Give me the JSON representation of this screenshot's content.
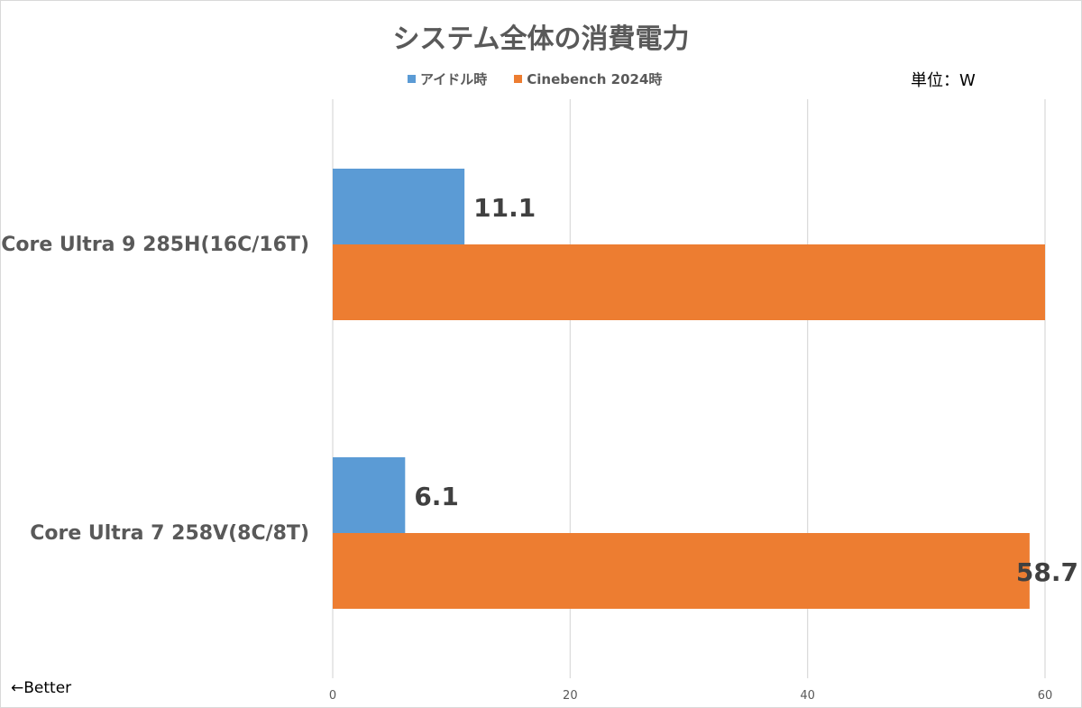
{
  "chart_data": {
    "type": "bar",
    "orientation": "horizontal",
    "title": "システム全体の消費電力",
    "unit_label": "単位：W",
    "footnote": "←Better",
    "categories": [
      "Core Ultra 9 285H(16C/16T)",
      "Core Ultra 7 258V(8C/8T)"
    ],
    "series": [
      {
        "name": "アイドル時",
        "color": "#5b9bd5",
        "values": [
          11.1,
          6.1
        ],
        "labels": [
          "11.1",
          "6.1"
        ]
      },
      {
        "name": "Cinebench 2024時",
        "color": "#ed7d31",
        "values": [
          60.0,
          58.7
        ],
        "labels": [
          "",
          "58.7"
        ]
      }
    ],
    "xlim": [
      0,
      60
    ],
    "xticks": [
      "0",
      "20",
      "40",
      "60"
    ],
    "grid": true,
    "legend_position": "top-center"
  }
}
